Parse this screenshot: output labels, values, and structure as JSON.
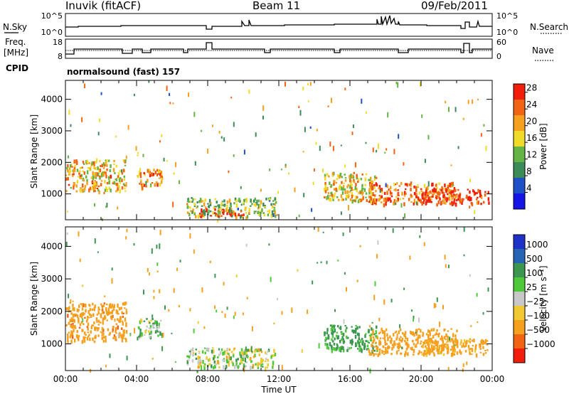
{
  "header": {
    "station": "Inuvik (fitACF)",
    "beam": "Beam 11",
    "date": "09/Feb/2011"
  },
  "status_panels": {
    "nsky_label": "N.Sky",
    "nsky_ticks": [
      "10^5",
      "10^0"
    ],
    "nsearch_label": "N.Search",
    "nsearch_ticks": [
      "10^5",
      "10^0"
    ],
    "freq_label_1": "Freq.",
    "freq_label_2": "[MHz]",
    "freq_ticks": [
      "18",
      "8"
    ],
    "nave_label": "Nave",
    "nave_ticks": [
      "60",
      "0"
    ],
    "cpid_label": "CPID",
    "cpid_text": "normalsound (fast) 157"
  },
  "colors": {
    "power_scale": [
      "#1414e6",
      "#1e50c8",
      "#3c8c5a",
      "#64b446",
      "#f0dc28",
      "#f5a01e",
      "#f06414",
      "#f01e0a"
    ],
    "velocity_scale": [
      "#f01e0a",
      "#f06414",
      "#f5a01e",
      "#f0c832",
      "#c8c8c8",
      "#50c83c",
      "#3c9650",
      "#2864b4",
      "#1e32c8"
    ]
  },
  "chart_data": [
    {
      "type": "heatmap",
      "name": "power",
      "ylabel": "Slant Range [km]",
      "xlim_hours": [
        0,
        24
      ],
      "ylim": [
        180,
        4600
      ],
      "yticks": [
        1000,
        2000,
        3000,
        4000
      ],
      "xticks": [
        "00:00",
        "04:00",
        "08:00",
        "12:00",
        "16:00",
        "20:00",
        "00:00"
      ],
      "colorbar_label": "Power [dB]",
      "colorbar_ticks": [
        4,
        8,
        12,
        16,
        20,
        24,
        28
      ],
      "colorbar_range": [
        0,
        30
      ],
      "echo_regions": [
        {
          "t": [
            0.0,
            3.4
          ],
          "r": [
            1100,
            2100
          ],
          "value": 20
        },
        {
          "t": [
            4.0,
            5.4
          ],
          "r": [
            1200,
            1800
          ],
          "value": 22
        },
        {
          "t": [
            6.8,
            11.8
          ],
          "r": [
            300,
            900
          ],
          "value": 14
        },
        {
          "t": [
            7.5,
            10.0
          ],
          "r": [
            300,
            550
          ],
          "value": 26
        },
        {
          "t": [
            14.5,
            17.5
          ],
          "r": [
            800,
            1700
          ],
          "value": 18
        },
        {
          "t": [
            17.0,
            22.0
          ],
          "r": [
            700,
            1400
          ],
          "value": 24
        },
        {
          "t": [
            20.0,
            23.8
          ],
          "r": [
            700,
            1200
          ],
          "value": 28
        }
      ]
    },
    {
      "type": "heatmap",
      "name": "velocity",
      "ylabel": "Slant Range [km]",
      "xlabel": "Time UT",
      "xlim_hours": [
        0,
        24
      ],
      "ylim": [
        180,
        4600
      ],
      "yticks": [
        1000,
        2000,
        3000,
        4000
      ],
      "xticks": [
        "00:00",
        "04:00",
        "08:00",
        "12:00",
        "16:00",
        "20:00",
        "00:00"
      ],
      "colorbar_label": "Velocity [m s⁻¹]",
      "colorbar_ticks": [
        "1000",
        "500",
        "100",
        "25",
        "−25",
        "−100",
        "−500",
        "−1000"
      ],
      "echo_regions": [
        {
          "t": [
            0.0,
            3.4
          ],
          "r": [
            1100,
            2300
          ],
          "value": -400
        },
        {
          "t": [
            4.0,
            5.4
          ],
          "r": [
            1200,
            1800
          ],
          "value": 80
        },
        {
          "t": [
            6.8,
            11.8
          ],
          "r": [
            300,
            900
          ],
          "value": 0
        },
        {
          "t": [
            14.5,
            17.5
          ],
          "r": [
            800,
            1600
          ],
          "value": 150
        },
        {
          "t": [
            17.0,
            22.0
          ],
          "r": [
            700,
            1500
          ],
          "value": -300
        },
        {
          "t": [
            20.0,
            23.8
          ],
          "r": [
            700,
            1200
          ],
          "value": -200
        }
      ]
    }
  ]
}
